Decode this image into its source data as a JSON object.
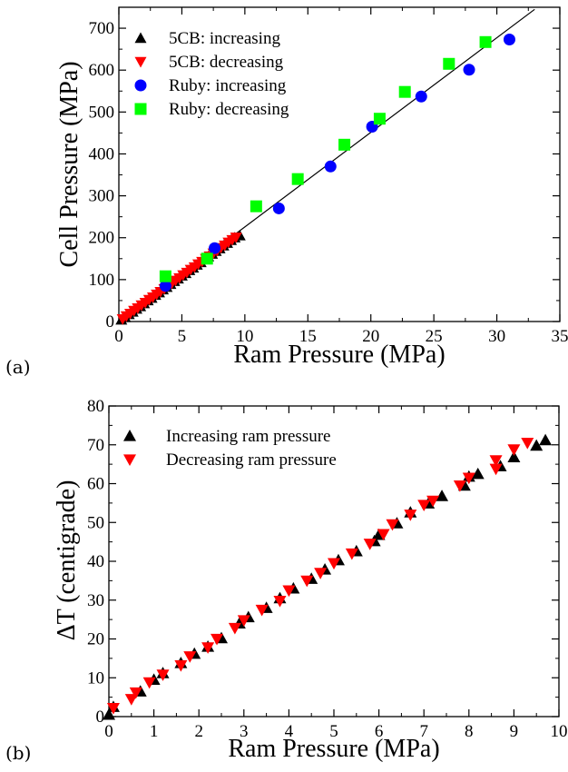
{
  "chart_data": [
    {
      "id": "a",
      "panel_label": "(a)",
      "type": "scatter",
      "xlabel": "Ram Pressure (MPa)",
      "ylabel": "Cell Pressure (MPa)",
      "xlim": [
        0,
        35
      ],
      "ylim": [
        0,
        750
      ],
      "xticks": [
        0,
        5,
        10,
        15,
        20,
        25,
        30,
        35
      ],
      "yticks": [
        0,
        100,
        200,
        300,
        400,
        500,
        600,
        700
      ],
      "grid": false,
      "legend_placement": "top-left",
      "fit_line": {
        "x": [
          0,
          33
        ],
        "y": [
          0,
          745
        ]
      },
      "series": [
        {
          "name": "5CB: increasing",
          "marker": "triangle-up",
          "color": "#000000",
          "x": [
            0.2,
            0.5,
            0.8,
            1.1,
            1.4,
            1.7,
            2.0,
            2.3,
            2.6,
            2.9,
            3.2,
            3.5,
            3.8,
            4.1,
            4.4,
            4.7,
            5.0,
            5.3,
            5.6,
            5.9,
            6.2,
            6.5,
            6.8,
            7.1,
            7.4,
            7.7,
            8.0,
            8.3,
            8.6,
            8.9,
            9.2,
            9.6
          ],
          "y": [
            4,
            10,
            17,
            23,
            30,
            36,
            43,
            50,
            56,
            63,
            69,
            76,
            82,
            89,
            96,
            102,
            109,
            115,
            122,
            128,
            135,
            141,
            148,
            155,
            161,
            168,
            174,
            181,
            187,
            194,
            200,
            205
          ]
        },
        {
          "name": "5CB: decreasing",
          "marker": "triangle-down",
          "color": "#ff0000",
          "x": [
            0.3,
            0.6,
            0.9,
            1.2,
            1.5,
            1.8,
            2.1,
            2.4,
            2.7,
            3.0,
            3.3,
            3.6,
            3.9,
            4.2,
            4.5,
            4.8,
            5.1,
            5.4,
            5.7,
            6.0,
            6.3,
            6.6,
            6.9,
            7.2,
            7.5,
            7.8,
            8.1,
            8.4,
            8.7,
            9.0,
            9.3
          ],
          "y": [
            6,
            13,
            19,
            26,
            32,
            39,
            45,
            52,
            58,
            65,
            71,
            78,
            85,
            91,
            98,
            104,
            111,
            117,
            124,
            130,
            137,
            143,
            150,
            156,
            163,
            169,
            176,
            182,
            189,
            195,
            201
          ]
        },
        {
          "name": "Ruby: increasing",
          "marker": "circle",
          "color": "#0000ff",
          "x": [
            3.7,
            7.6,
            12.7,
            16.8,
            20.1,
            24.0,
            27.8,
            31.0
          ],
          "y": [
            85,
            175,
            270,
            370,
            465,
            537,
            601,
            673
          ]
        },
        {
          "name": "Ruby: decreasing",
          "marker": "square",
          "color": "#00ff00",
          "x": [
            3.7,
            7.0,
            10.9,
            14.2,
            17.9,
            20.7,
            22.7,
            26.2,
            29.1
          ],
          "y": [
            108,
            150,
            275,
            340,
            422,
            484,
            548,
            615,
            667
          ]
        }
      ]
    },
    {
      "id": "b",
      "panel_label": "(b)",
      "type": "scatter",
      "xlabel": "Ram Pressure (MPa)",
      "ylabel": "ΔT (centigrade)",
      "xlim": [
        0,
        10
      ],
      "ylim": [
        0,
        80
      ],
      "xticks": [
        0,
        1,
        2,
        3,
        4,
        5,
        6,
        7,
        8,
        9,
        10
      ],
      "yticks": [
        0,
        10,
        20,
        30,
        40,
        50,
        60,
        70,
        80
      ],
      "grid": false,
      "legend_placement": "top-left",
      "series": [
        {
          "name": "Increasing ram pressure",
          "marker": "triangle-up",
          "color": "#000000",
          "x": [
            0.0,
            0.1,
            0.7,
            1.0,
            1.2,
            1.6,
            1.9,
            2.2,
            2.5,
            2.9,
            3.1,
            3.5,
            3.8,
            4.1,
            4.5,
            4.8,
            5.1,
            5.5,
            5.9,
            6.0,
            6.4,
            6.7,
            7.1,
            7.4,
            7.9,
            8.0,
            8.2,
            8.7,
            9.0,
            9.5,
            9.7
          ],
          "y": [
            0.5,
            2.5,
            6.5,
            9.5,
            11.2,
            13.8,
            16.2,
            18.0,
            20.2,
            24.0,
            25.6,
            28.0,
            30.5,
            33.0,
            35.5,
            37.9,
            40.3,
            42.6,
            45.2,
            46.8,
            49.8,
            52.6,
            54.9,
            56.8,
            59.5,
            61.8,
            62.5,
            64.5,
            66.8,
            69.8,
            71.2
          ]
        },
        {
          "name": "Decreasing ram pressure",
          "marker": "triangle-down",
          "color": "#ff0000",
          "x": [
            0.1,
            0.5,
            0.6,
            0.9,
            1.2,
            1.6,
            1.8,
            2.2,
            2.4,
            2.8,
            3.0,
            3.4,
            3.8,
            4.0,
            4.4,
            4.7,
            5.0,
            5.4,
            5.8,
            6.1,
            6.3,
            6.7,
            7.0,
            7.2,
            7.8,
            8.0,
            8.6,
            8.6,
            9.0,
            9.3
          ],
          "y": [
            2.2,
            4.5,
            6.2,
            8.8,
            10.8,
            13.2,
            15.5,
            17.8,
            20.0,
            22.8,
            24.8,
            27.5,
            29.8,
            32.5,
            35.0,
            37.0,
            39.5,
            42.0,
            44.5,
            47.0,
            49.5,
            52.0,
            54.5,
            55.6,
            59.5,
            61.5,
            63.8,
            66.0,
            68.8,
            70.5
          ]
        }
      ]
    }
  ]
}
